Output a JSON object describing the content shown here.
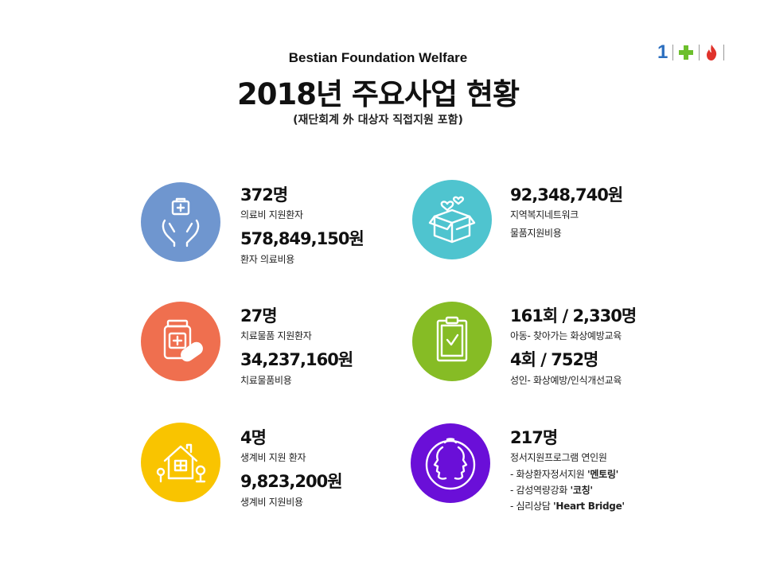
{
  "header": {
    "subtitle_en": "Bestian Foundation Welfare",
    "title": "2018년 주요사업 현황",
    "note": "(재단회계 外 대상자 직접지원 포함)"
  },
  "logo": {
    "text": "1",
    "icons": [
      "plus-icon",
      "flame-icon"
    ]
  },
  "colors": {
    "medical": "#6f96cf",
    "welfare": "#4fc4cf",
    "treatment": "#ef6f4f",
    "education": "#86bc25",
    "living": "#f9c400",
    "emotional": "#6a0fd8"
  },
  "items": [
    {
      "icon": "hands-medical-kit-icon",
      "stat1": "372명",
      "label1": "의료비 지원환자",
      "stat2": "578,849,150원",
      "label2": "환자 의료비용"
    },
    {
      "icon": "gift-box-hearts-icon",
      "stat1": "92,348,740원",
      "label1": "지역복지네트워크",
      "label2": "물품지원비용"
    },
    {
      "icon": "medicine-jar-pill-icon",
      "stat1": "27명",
      "label1": "치료물품 지원환자",
      "stat2": "34,237,160원",
      "label2": "치료물품비용"
    },
    {
      "icon": "clipboard-check-icon",
      "stat1": "161회 / 2,330명",
      "label1": "아동- 찾아가는 화상예방교육",
      "stat2": "4회 / 752명",
      "label2": "성인- 화상예방/인식개선교육"
    },
    {
      "icon": "house-trees-icon",
      "stat1": "4명",
      "label1": "생계비 지원 환자",
      "stat2": "9,823,200원",
      "label2": "생계비 지원비용"
    },
    {
      "icon": "two-faces-icon",
      "stat1": "217명",
      "label1": "정서지원프로그램 연인원",
      "bullets": [
        {
          "prefix": "- 화상환자정서지원 ",
          "bold": "'멘토링'"
        },
        {
          "prefix": "- 감성역량강화 ",
          "bold": "'코칭'"
        },
        {
          "prefix": "- 심리상담 ",
          "bold": "'Heart Bridge'"
        }
      ]
    }
  ]
}
